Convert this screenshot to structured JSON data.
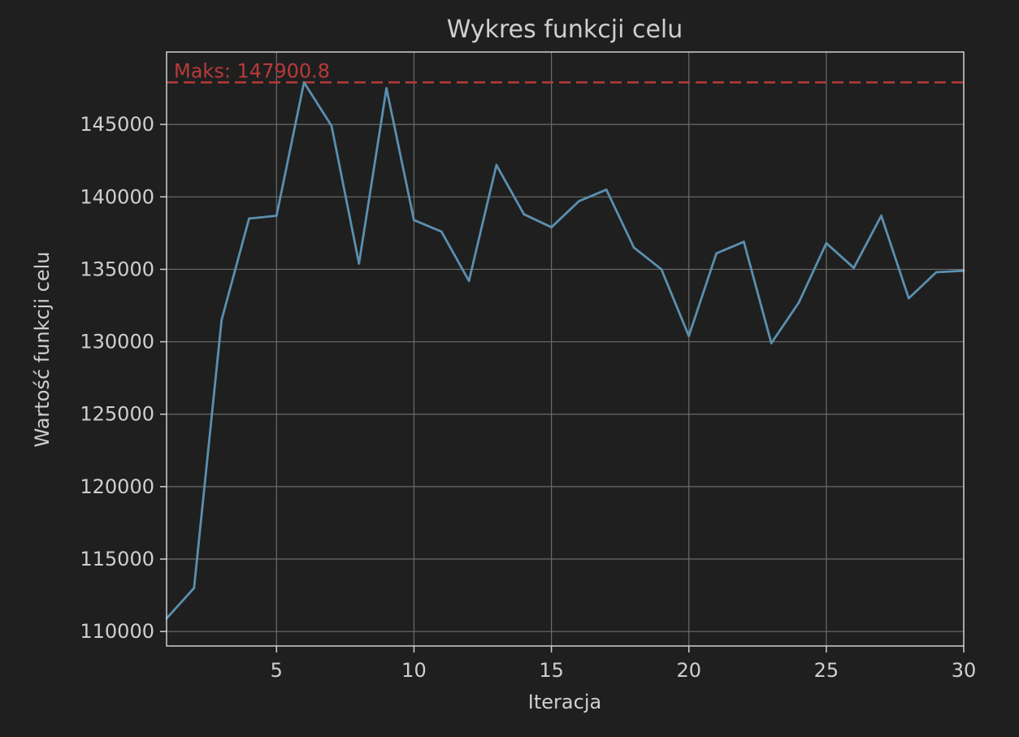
{
  "colors": {
    "background": "#1f1f1f",
    "text": "#cfcfcf",
    "grid": "#6b6b6b",
    "axis": "#cfcfcf",
    "line": "#5b8fb0",
    "max_line": "#b83a3a"
  },
  "chart_data": {
    "type": "line",
    "title": "Wykres funkcji celu",
    "xlabel": "Iteracja",
    "ylabel": "Wartość funkcji celu",
    "xlim": [
      1,
      30
    ],
    "ylim": [
      109000,
      150000
    ],
    "xticks": [
      5,
      10,
      15,
      20,
      25,
      30
    ],
    "yticks": [
      110000,
      115000,
      120000,
      125000,
      130000,
      135000,
      140000,
      145000
    ],
    "grid": true,
    "x": [
      1,
      2,
      3,
      4,
      5,
      6,
      7,
      8,
      9,
      10,
      11,
      12,
      13,
      14,
      15,
      16,
      17,
      18,
      19,
      20,
      21,
      22,
      23,
      24,
      25,
      26,
      27,
      28,
      29,
      30
    ],
    "y": [
      110900,
      113000,
      131500,
      138500,
      138700,
      147900.8,
      144900,
      135400,
      147500,
      138400,
      137600,
      134200,
      142200,
      138800,
      137900,
      139700,
      140500,
      136500,
      135000,
      130400,
      136100,
      136900,
      129900,
      132700,
      136800,
      135100,
      138700,
      133000,
      134800,
      134900
    ],
    "max_line": {
      "value": 147900.8,
      "label": "Maks: 147900.8",
      "style": "dashed"
    }
  }
}
